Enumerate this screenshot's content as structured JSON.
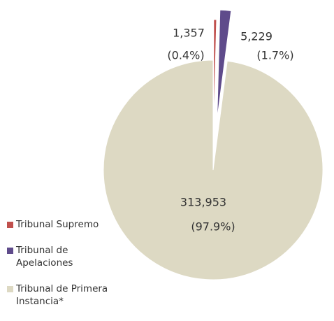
{
  "chart_data": {
    "type": "pie",
    "categories": [
      "Tribunal Supremo",
      "Tribunal de Apelaciones",
      "Tribunal de Primera Instancia*"
    ],
    "values": [
      1357,
      5229,
      313953
    ],
    "value_labels": [
      "1,357",
      "5,229",
      "313,953"
    ],
    "percentages": [
      0.4,
      1.7,
      97.9
    ],
    "percentage_labels": [
      "(0.4%)",
      "(1.7%)",
      "(97.9%)"
    ],
    "colors": [
      "#c0504d",
      "#5f4b8b",
      "#ddd9c3"
    ],
    "legend": "left"
  }
}
